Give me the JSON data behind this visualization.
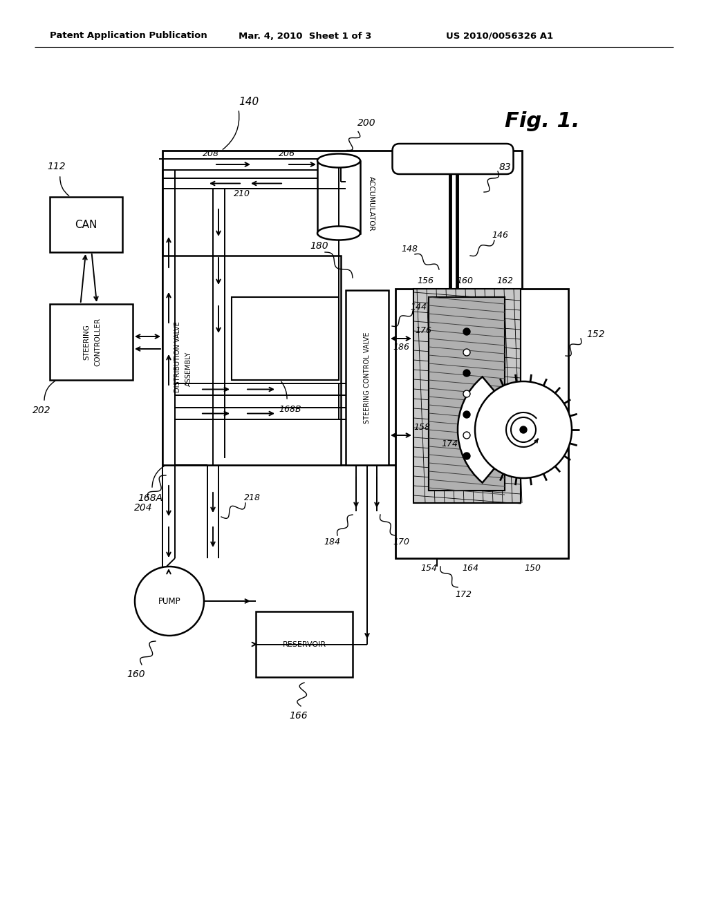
{
  "bg": "#ffffff",
  "lc": "#000000",
  "header_left": "Patent Application Publication",
  "header_mid": "Mar. 4, 2010  Sheet 1 of 3",
  "header_right": "US 2010/0056326 A1",
  "fig_label": "Fig. 1."
}
